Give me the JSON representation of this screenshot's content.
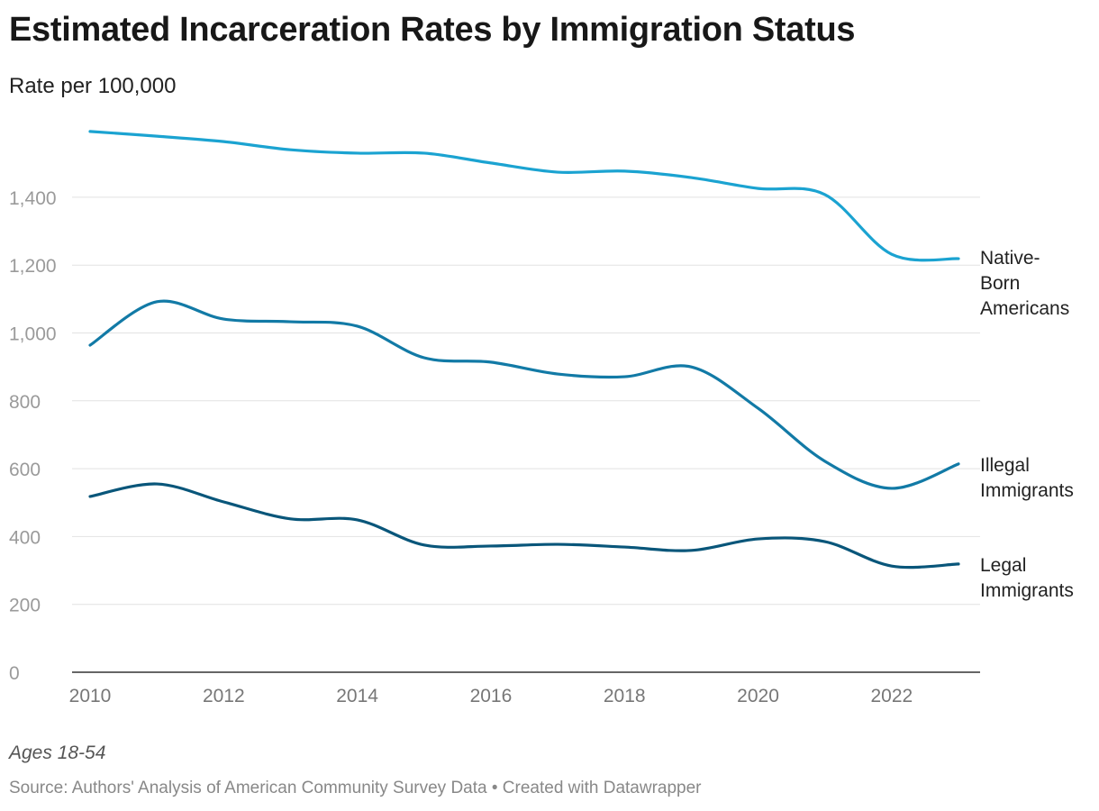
{
  "title": "Estimated Incarceration Rates by Immigration Status",
  "subtitle": "Rate per 100,000",
  "note": "Ages 18-54",
  "source": "Source: Authors' Analysis of American Community Survey Data • Created with Datawrapper",
  "chart_data": {
    "type": "line",
    "x": [
      2010,
      2011,
      2012,
      2013,
      2014,
      2015,
      2016,
      2017,
      2018,
      2019,
      2020,
      2021,
      2022,
      2023
    ],
    "xticks": [
      "2010",
      "2012",
      "2014",
      "2016",
      "2018",
      "2020",
      "2022"
    ],
    "yticks": [
      "0",
      "200",
      "400",
      "600",
      "800",
      "1,000",
      "1,200",
      "1,400"
    ],
    "ylim": [
      0,
      1600
    ],
    "grid": true,
    "legend": "inline labels at line ends (right)",
    "series": [
      {
        "name": "Native-Born Americans",
        "label_lines": [
          "Native-",
          "Born",
          "Americans"
        ],
        "color": "#1ba3d1",
        "values": [
          1594,
          1580,
          1564,
          1540,
          1530,
          1530,
          1501,
          1474,
          1477,
          1458,
          1426,
          1408,
          1232,
          1219
        ]
      },
      {
        "name": "Illegal Immigrants",
        "label_lines": [
          "Illegal",
          "Immigrants"
        ],
        "color": "#127aa6",
        "values": [
          964,
          1092,
          1041,
          1033,
          1020,
          927,
          914,
          879,
          871,
          900,
          778,
          622,
          542,
          614
        ]
      },
      {
        "name": "Legal Immigrants",
        "label_lines": [
          "Legal",
          "Immigrants"
        ],
        "color": "#09567a",
        "values": [
          518,
          555,
          502,
          452,
          449,
          375,
          372,
          377,
          369,
          359,
          393,
          385,
          313,
          319
        ]
      }
    ]
  }
}
